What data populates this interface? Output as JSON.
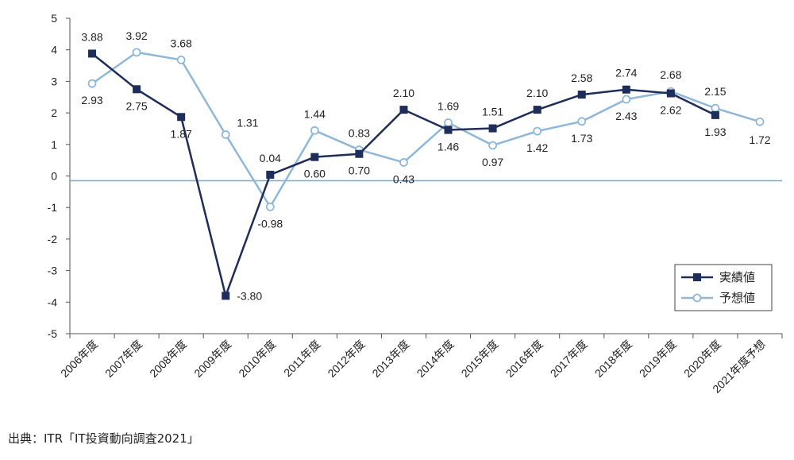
{
  "chart_data": {
    "type": "line",
    "title": "",
    "xlabel": "",
    "ylabel": "",
    "ylim": [
      -5,
      5
    ],
    "yticks": [
      "5",
      "4",
      "3",
      "2",
      "1",
      "0",
      "-1",
      "-2",
      "-3",
      "-4",
      "-5"
    ],
    "categories": [
      "2006年度",
      "2007年度",
      "2008年度",
      "2009年度",
      "2010年度",
      "2011年度",
      "2012年度",
      "2013年度",
      "2014年度",
      "2015年度",
      "2016年度",
      "2017年度",
      "2018年度",
      "2019年度",
      "2020年度",
      "2021年度予想"
    ],
    "series": [
      {
        "name": "実績値",
        "color": "#1f2d5a",
        "marker": "square-filled",
        "values": [
          3.88,
          2.75,
          1.87,
          -3.8,
          0.04,
          0.6,
          0.7,
          2.1,
          1.46,
          1.51,
          2.1,
          2.58,
          2.74,
          2.62,
          1.93,
          null
        ],
        "labels": [
          "3.88",
          "2.75",
          "1.87",
          "-3.80",
          "0.04",
          "0.60",
          "0.70",
          "2.10",
          "1.46",
          "1.51",
          "2.10",
          "2.58",
          "2.74",
          "2.62",
          "1.93",
          ""
        ]
      },
      {
        "name": "予想値",
        "color": "#8fb8d8",
        "marker": "circle-open",
        "values": [
          2.93,
          3.92,
          3.68,
          1.31,
          -0.98,
          1.44,
          0.83,
          0.43,
          1.69,
          0.97,
          1.42,
          1.73,
          2.43,
          2.68,
          2.15,
          1.72
        ],
        "labels": [
          "2.93",
          "3.92",
          "3.68",
          "1.31",
          "-0.98",
          "1.44",
          "0.83",
          "0.43",
          "1.69",
          "0.97",
          "1.42",
          "1.73",
          "2.43",
          "2.68",
          "2.15",
          "1.72"
        ]
      }
    ],
    "reference_line": {
      "value": -0.15,
      "color": "#7fa8c8"
    },
    "legend": {
      "position": "lower-right",
      "entries": [
        "実績値",
        "予想値"
      ]
    },
    "grid": false
  },
  "footer": {
    "source": "出典：ITR「IT投資動向調査2021」"
  }
}
